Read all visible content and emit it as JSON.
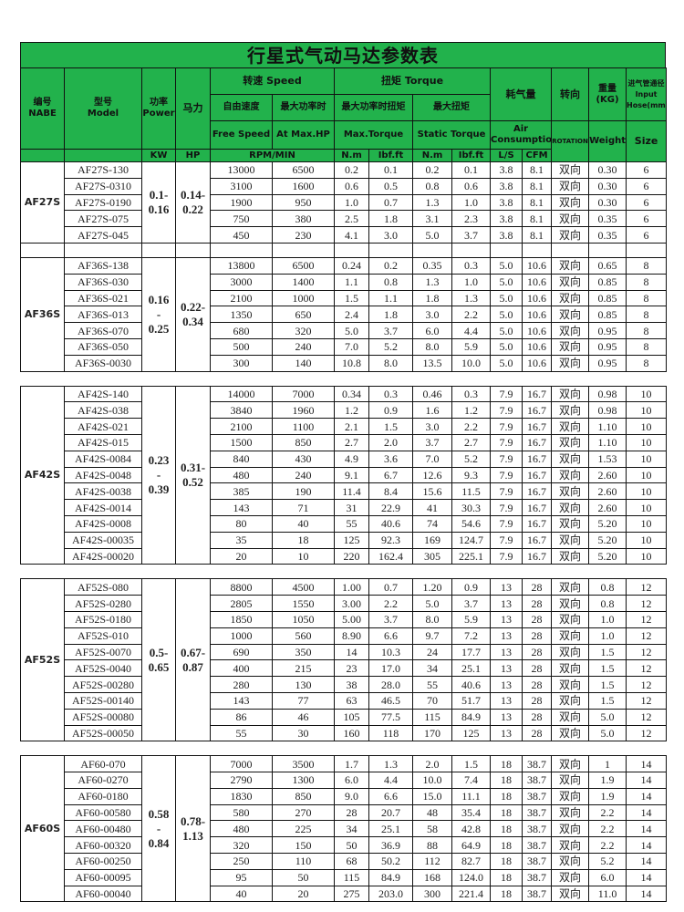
{
  "title": "行星式气动马达参数表",
  "header": {
    "code_cn": "编号",
    "code_en": "NABE",
    "model_cn": "型号",
    "model_en": "Model",
    "power_cn": "功率",
    "power_en": "Power",
    "power_unit": "KW",
    "hp_cn": "马力",
    "hp_unit": "HP",
    "speed": "转速 Speed",
    "free_cn": "自由速度",
    "maxhp_cn": "最大功率时",
    "free_en": "Free Speed",
    "maxhp_en": "At Max.HP",
    "speed_unit": "RPM/MIN",
    "torque": "扭矩 Torque",
    "maxtq_cn": "最大功率时扭矩",
    "static_cn": "最大扭矩",
    "maxtq_en": "Max.Torque",
    "static_en": "Static Torque",
    "nm": "N.m",
    "lbf": "Ibf.ft",
    "air_cn": "耗气量",
    "air_en": "Air Consumption",
    "ls": "L/S",
    "cfm": "CFM",
    "rot_cn": "转向",
    "rot_en": "ROTATION",
    "wt_cn": "重量 (KG)",
    "wt_en": "Weight",
    "size_cn": "进气管通径Input Hose(mm)",
    "size_en": "Size"
  },
  "groups": [
    {
      "name": "AF27S",
      "kw": "0.1-\n0.16",
      "hp": "0.14-\n0.22",
      "rows": [
        [
          "AF27S-130",
          "13000",
          "6500",
          "0.2",
          "0.1",
          "0.2",
          "0.1",
          "3.8",
          "8.1",
          "双向",
          "0.30",
          "6"
        ],
        [
          "AF27S-0310",
          "3100",
          "1600",
          "0.6",
          "0.5",
          "0.8",
          "0.6",
          "3.8",
          "8.1",
          "双向",
          "0.30",
          "6"
        ],
        [
          "AF27S-0190",
          "1900",
          "950",
          "1.0",
          "0.7",
          "1.3",
          "1.0",
          "3.8",
          "8.1",
          "双向",
          "0.30",
          "6"
        ],
        [
          "AF27S-075",
          "750",
          "380",
          "2.5",
          "1.8",
          "3.1",
          "2.3",
          "3.8",
          "8.1",
          "双向",
          "0.35",
          "6"
        ],
        [
          "AF27S-045",
          "450",
          "230",
          "4.1",
          "3.0",
          "5.0",
          "3.7",
          "3.8",
          "8.1",
          "双向",
          "0.35",
          "6"
        ]
      ]
    },
    {
      "name": "AF36S",
      "kw": "0.16\n-\n0.25",
      "hp": "0.22-\n0.34",
      "rows": [
        [
          "AF36S-138",
          "13800",
          "6500",
          "0.24",
          "0.2",
          "0.35",
          "0.3",
          "5.0",
          "10.6",
          "双向",
          "0.65",
          "8"
        ],
        [
          "AF36S-030",
          "3000",
          "1400",
          "1.1",
          "0.8",
          "1.3",
          "1.0",
          "5.0",
          "10.6",
          "双向",
          "0.85",
          "8"
        ],
        [
          "AF36S-021",
          "2100",
          "1000",
          "1.5",
          "1.1",
          "1.8",
          "1.3",
          "5.0",
          "10.6",
          "双向",
          "0.85",
          "8"
        ],
        [
          "AF36S-013",
          "1350",
          "650",
          "2.4",
          "1.8",
          "3.0",
          "2.2",
          "5.0",
          "10.6",
          "双向",
          "0.85",
          "8"
        ],
        [
          "AF36S-070",
          "680",
          "320",
          "5.0",
          "3.7",
          "6.0",
          "4.4",
          "5.0",
          "10.6",
          "双向",
          "0.95",
          "8"
        ],
        [
          "AF36S-050",
          "500",
          "240",
          "7.0",
          "5.2",
          "8.0",
          "5.9",
          "5.0",
          "10.6",
          "双向",
          "0.95",
          "8"
        ],
        [
          "AF36S-0030",
          "300",
          "140",
          "10.8",
          "8.0",
          "13.5",
          "10.0",
          "5.0",
          "10.6",
          "双向",
          "0.95",
          "8"
        ]
      ]
    },
    {
      "name": "AF42S",
      "kw": "0.23\n-\n0.39",
      "hp": "0.31-\n0.52",
      "rows": [
        [
          "AF42S-140",
          "14000",
          "7000",
          "0.34",
          "0.3",
          "0.46",
          "0.3",
          "7.9",
          "16.7",
          "双向",
          "0.98",
          "10"
        ],
        [
          "AF42S-038",
          "3840",
          "1960",
          "1.2",
          "0.9",
          "1.6",
          "1.2",
          "7.9",
          "16.7",
          "双向",
          "0.98",
          "10"
        ],
        [
          "AF42S-021",
          "2100",
          "1100",
          "2.1",
          "1.5",
          "3.0",
          "2.2",
          "7.9",
          "16.7",
          "双向",
          "1.10",
          "10"
        ],
        [
          "AF42S-015",
          "1500",
          "850",
          "2.7",
          "2.0",
          "3.7",
          "2.7",
          "7.9",
          "16.7",
          "双向",
          "1.10",
          "10"
        ],
        [
          "AF42S-0084",
          "840",
          "430",
          "4.9",
          "3.6",
          "7.0",
          "5.2",
          "7.9",
          "16.7",
          "双向",
          "1.53",
          "10"
        ],
        [
          "AF42S-0048",
          "480",
          "240",
          "9.1",
          "6.7",
          "12.6",
          "9.3",
          "7.9",
          "16.7",
          "双向",
          "2.60",
          "10"
        ],
        [
          "AF42S-0038",
          "385",
          "190",
          "11.4",
          "8.4",
          "15.6",
          "11.5",
          "7.9",
          "16.7",
          "双向",
          "2.60",
          "10"
        ],
        [
          "AF42S-0014",
          "143",
          "71",
          "31",
          "22.9",
          "41",
          "30.3",
          "7.9",
          "16.7",
          "双向",
          "2.60",
          "10"
        ],
        [
          "AF42S-0008",
          "80",
          "40",
          "55",
          "40.6",
          "74",
          "54.6",
          "7.9",
          "16.7",
          "双向",
          "5.20",
          "10"
        ],
        [
          "AF42S-00035",
          "35",
          "18",
          "125",
          "92.3",
          "169",
          "124.7",
          "7.9",
          "16.7",
          "双向",
          "5.20",
          "10"
        ],
        [
          "AF42S-00020",
          "20",
          "10",
          "220",
          "162.4",
          "305",
          "225.1",
          "7.9",
          "16.7",
          "双向",
          "5.20",
          "10"
        ]
      ]
    },
    {
      "name": "AF52S",
      "kw": "0.5-\n0.65",
      "hp": "0.67-\n0.87",
      "rows": [
        [
          "AF52S-080",
          "8800",
          "4500",
          "1.00",
          "0.7",
          "1.20",
          "0.9",
          "13",
          "28",
          "双向",
          "0.8",
          "12"
        ],
        [
          "AF52S-0280",
          "2805",
          "1550",
          "3.00",
          "2.2",
          "5.0",
          "3.7",
          "13",
          "28",
          "双向",
          "0.8",
          "12"
        ],
        [
          "AF52S-0180",
          "1850",
          "1050",
          "5.00",
          "3.7",
          "8.0",
          "5.9",
          "13",
          "28",
          "双向",
          "1.0",
          "12"
        ],
        [
          "AF52S-010",
          "1000",
          "560",
          "8.90",
          "6.6",
          "9.7",
          "7.2",
          "13",
          "28",
          "双向",
          "1.0",
          "12"
        ],
        [
          "AF52S-0070",
          "690",
          "350",
          "14",
          "10.3",
          "24",
          "17.7",
          "13",
          "28",
          "双向",
          "1.5",
          "12"
        ],
        [
          "AF52S-0040",
          "400",
          "215",
          "23",
          "17.0",
          "34",
          "25.1",
          "13",
          "28",
          "双向",
          "1.5",
          "12"
        ],
        [
          "AF52S-00280",
          "280",
          "130",
          "38",
          "28.0",
          "55",
          "40.6",
          "13",
          "28",
          "双向",
          "1.5",
          "12"
        ],
        [
          "AF52S-00140",
          "143",
          "77",
          "63",
          "46.5",
          "70",
          "51.7",
          "13",
          "28",
          "双向",
          "1.5",
          "12"
        ],
        [
          "AF52S-00080",
          "86",
          "46",
          "105",
          "77.5",
          "115",
          "84.9",
          "13",
          "28",
          "双向",
          "5.0",
          "12"
        ],
        [
          "AF52S-00050",
          "55",
          "30",
          "160",
          "118",
          "170",
          "125",
          "13",
          "28",
          "双向",
          "5.0",
          "12"
        ]
      ]
    },
    {
      "name": "AF60S",
      "kw": "0.58\n-\n0.84",
      "hp": "0.78-\n1.13",
      "rows": [
        [
          "AF60-070",
          "7000",
          "3500",
          "1.7",
          "1.3",
          "2.0",
          "1.5",
          "18",
          "38.7",
          "双向",
          "1",
          "14"
        ],
        [
          "AF60-0270",
          "2790",
          "1300",
          "6.0",
          "4.4",
          "10.0",
          "7.4",
          "18",
          "38.7",
          "双向",
          "1.9",
          "14"
        ],
        [
          "AF60-0180",
          "1830",
          "850",
          "9.0",
          "6.6",
          "15.0",
          "11.1",
          "18",
          "38.7",
          "双向",
          "1.9",
          "14"
        ],
        [
          "AF60-00580",
          "580",
          "270",
          "28",
          "20.7",
          "48",
          "35.4",
          "18",
          "38.7",
          "双向",
          "2.2",
          "14"
        ],
        [
          "AF60-00480",
          "480",
          "225",
          "34",
          "25.1",
          "58",
          "42.8",
          "18",
          "38.7",
          "双向",
          "2.2",
          "14"
        ],
        [
          "AF60-00320",
          "320",
          "150",
          "50",
          "36.9",
          "88",
          "64.9",
          "18",
          "38.7",
          "双向",
          "2.2",
          "14"
        ],
        [
          "AF60-00250",
          "250",
          "110",
          "68",
          "50.2",
          "112",
          "82.7",
          "18",
          "38.7",
          "双向",
          "5.2",
          "14"
        ],
        [
          "AF60-00095",
          "95",
          "50",
          "115",
          "84.9",
          "168",
          "124.0",
          "18",
          "38.7",
          "双向",
          "6.0",
          "14"
        ],
        [
          "AF60-00040",
          "40",
          "20",
          "275",
          "203.0",
          "300",
          "221.4",
          "18",
          "38.7",
          "双向",
          "11.0",
          "14"
        ]
      ]
    }
  ],
  "colors": {
    "header_bg": "#22b24c",
    "border": "#111111"
  }
}
